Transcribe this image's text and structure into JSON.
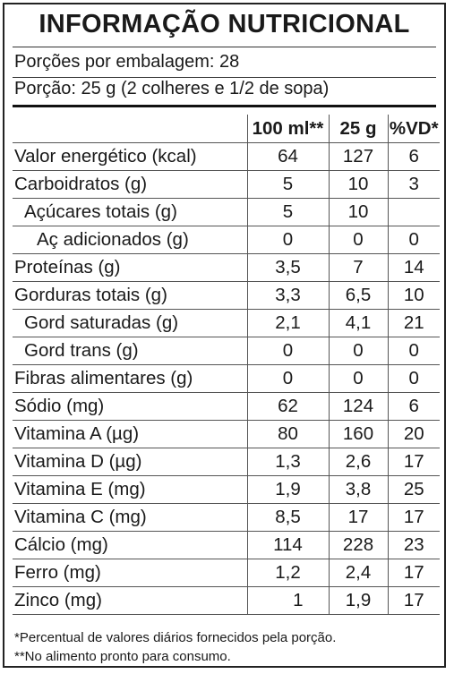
{
  "title": "INFORMAÇÃO NUTRICIONAL",
  "servings_per_package": "Porções por embalagem: 28",
  "serving_size": "Porção: 25 g (2 colheres e 1/2 de sopa)",
  "columns": [
    "100 ml**",
    "25 g",
    "%VD*"
  ],
  "rows": [
    {
      "name": "Valor energético (kcal)",
      "per100": "64",
      "per_serving": "127",
      "vd": "6"
    },
    {
      "name": "Carboidratos (g)",
      "per100": "5",
      "per_serving": "10",
      "vd": "3"
    },
    {
      "name": "Açúcares totais (g)",
      "per100": "5",
      "per_serving": "10",
      "vd": ""
    },
    {
      "name": "Aç adicionados (g)",
      "per100": "0",
      "per_serving": "0",
      "vd": "0"
    },
    {
      "name": "Proteínas (g)",
      "per100": "3,5",
      "per_serving": "7",
      "vd": "14"
    },
    {
      "name": "Gorduras totais (g)",
      "per100": "3,3",
      "per_serving": "6,5",
      "vd": "10"
    },
    {
      "name": "Gord saturadas (g)",
      "per100": "2,1",
      "per_serving": "4,1",
      "vd": "21"
    },
    {
      "name": "Gord trans (g)",
      "per100": "0",
      "per_serving": "0",
      "vd": "0"
    },
    {
      "name": "Fibras alimentares (g)",
      "per100": "0",
      "per_serving": "0",
      "vd": "0"
    },
    {
      "name": "Sódio (mg)",
      "per100": "62",
      "per_serving": "124",
      "vd": "6"
    },
    {
      "name": "Vitamina A (µg)",
      "per100": "80",
      "per_serving": "160",
      "vd": "20"
    },
    {
      "name": "Vitamina D (µg)",
      "per100": "1,3",
      "per_serving": "2,6",
      "vd": "17"
    },
    {
      "name": "Vitamina E (mg)",
      "per100": "1,9",
      "per_serving": "3,8",
      "vd": "25"
    },
    {
      "name": "Vitamina C (mg)",
      "per100": "8,5",
      "per_serving": "17",
      "vd": "17"
    },
    {
      "name": "Cálcio (mg)",
      "per100": "114",
      "per_serving": "228",
      "vd": "23"
    },
    {
      "name": "Ferro (mg)",
      "per100": "1,2",
      "per_serving": "2,4",
      "vd": "17"
    },
    {
      "name": "Zinco (mg)",
      "per100": "1",
      "per_serving": "1,9",
      "vd": "17"
    }
  ],
  "footnotes": [
    "*Percentual de valores diários fornecidos pela porção.",
    "**No alimento pronto para consumo."
  ]
}
